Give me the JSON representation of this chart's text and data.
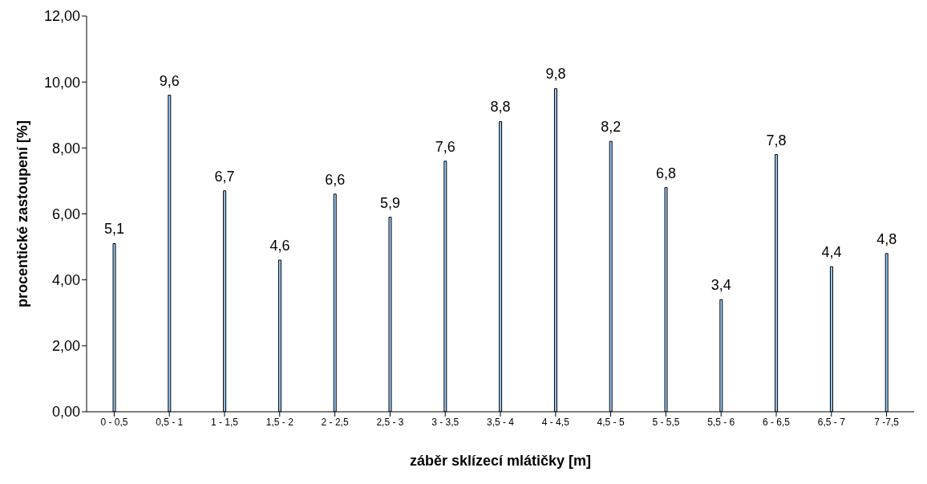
{
  "chart_data": {
    "type": "bar",
    "xlabel": "záběr sklízecí mlátičky [m]",
    "ylabel": "procentické zastoupení [%]",
    "categories": [
      "0 - 0,5",
      "0,5 - 1",
      "1 - 1,5",
      "1,5 - 2",
      "2 - 2,5",
      "2,5 - 3",
      "3 - 3,5",
      "3,5 - 4",
      "4 - 4,5",
      "4,5 - 5",
      "5 - 5,5",
      "5,5 - 6",
      "6 - 6,5",
      "6,5 - 7",
      "7 -7,5"
    ],
    "values": [
      5.1,
      9.6,
      6.7,
      4.6,
      6.6,
      5.9,
      7.6,
      8.8,
      9.8,
      8.2,
      6.8,
      3.4,
      7.8,
      4.4,
      4.8
    ],
    "value_labels": [
      "5,1",
      "9,6",
      "6,7",
      "4,6",
      "6,6",
      "5,9",
      "7,6",
      "8,8",
      "9,8",
      "8,2",
      "6,8",
      "3,4",
      "7,8",
      "4,4",
      "4,8"
    ],
    "color": "#99ccff",
    "ylim": [
      0,
      12
    ],
    "yticks": [
      {
        "value": 0,
        "label": "0,00"
      },
      {
        "value": 2,
        "label": "2,00"
      },
      {
        "value": 4,
        "label": "4,00"
      },
      {
        "value": 6,
        "label": "6,00"
      },
      {
        "value": 8,
        "label": "8,00"
      },
      {
        "value": 10,
        "label": "10,00"
      },
      {
        "value": 12,
        "label": "12,00"
      }
    ],
    "grid": false,
    "legend": false
  }
}
